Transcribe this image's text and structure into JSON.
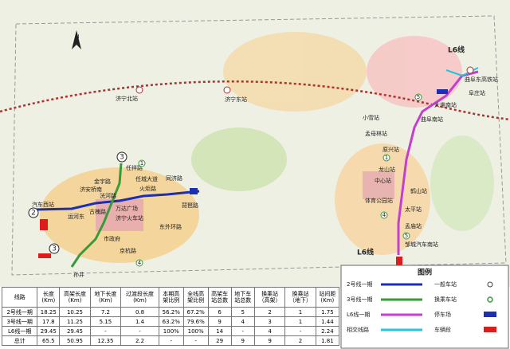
{
  "map": {
    "labels": [
      "N",
      "济宁北站",
      "济宁东站",
      "L6线",
      "曲阜东高铁站",
      "阜庄站",
      "大堆南站",
      "曲阜南站",
      "小雪站",
      "孟母林站",
      "原兴站",
      "龙山站",
      "中心站",
      "鹤山站",
      "体育公园站",
      "太平站",
      "孟庙站",
      "邹城汽车南站",
      "L6线",
      "汽车西站",
      "运河东",
      "济安桥南",
      "古槐路",
      "万达广场",
      "济宁火车站",
      "火炬路",
      "同济路",
      "琵琶路",
      "任祥路",
      "任城大道",
      "金宇路",
      "洸河路",
      "东外环路",
      "市政府",
      "京杭路",
      "孙井",
      "2",
      "3",
      "3",
      "1",
      "5",
      "4",
      "5",
      "1",
      "4"
    ]
  },
  "table": {
    "header": [
      "线路",
      "长度\n(Km)",
      "高架长度\n(Km)",
      "地下长度\n(Km)",
      "过渡段长度\n(Km)",
      "本期高\n架比例",
      "全线高\n架比例",
      "高架车\n站总数",
      "地下车\n站总数",
      "换乘站\n（高架）",
      "换乘站\n（地下）",
      "站间距\n(Km)"
    ],
    "rows": [
      [
        "2号线一期",
        "18.25",
        "10.25",
        "7.2",
        "0.8",
        "56.2%",
        "67.2%",
        "6",
        "5",
        "2",
        "1",
        "1.75"
      ],
      [
        "3号线一期",
        "17.8",
        "11.25",
        "5.15",
        "1.4",
        "63.2%",
        "79.6%",
        "9",
        "4",
        "3",
        "1",
        "1.44"
      ],
      [
        "L6线一期",
        "29.45",
        "29.45",
        "-",
        "-",
        "100%",
        "100%",
        "14",
        "-",
        "4",
        "-",
        "2.24"
      ],
      [
        "总计",
        "65.5",
        "50.95",
        "12.35",
        "2.2",
        "-",
        "-",
        "29",
        "9",
        "9",
        "2",
        "1.81"
      ]
    ]
  },
  "legend": {
    "title": "图例",
    "items": [
      "2号线一期",
      "一般车站",
      "3号线一期",
      "换乘车站",
      "L6线一期",
      "停车场",
      "相交线路",
      "车辆段"
    ]
  }
}
